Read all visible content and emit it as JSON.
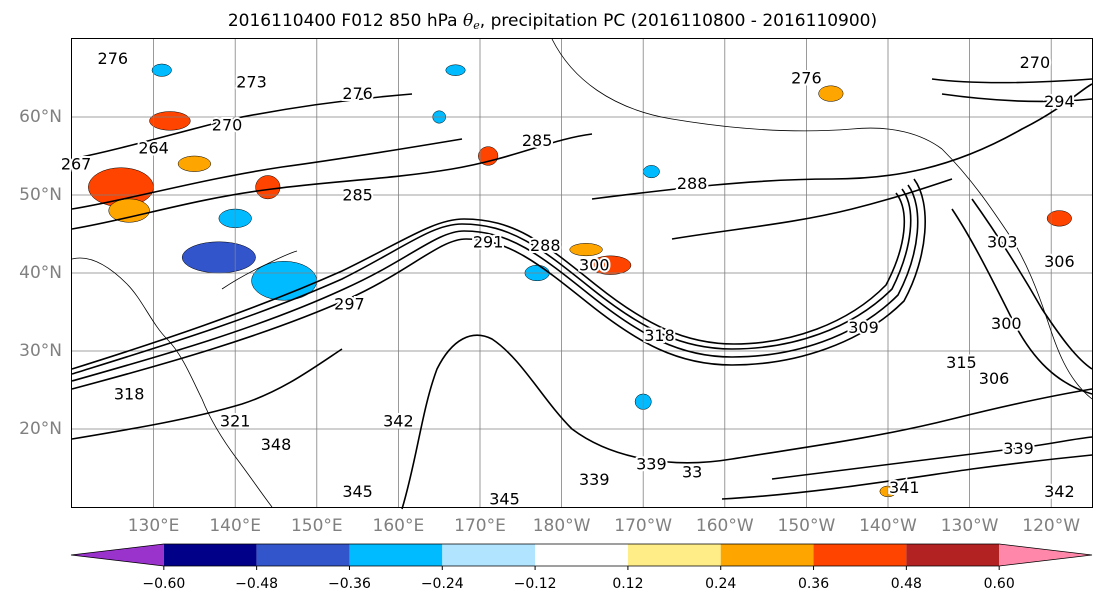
{
  "title": {
    "prefix": "2016110400 F012 850 hPa ",
    "theta": "θ",
    "theta_sub": "e",
    "suffix": ", precipitation PC (2016110800 - 2016110900)"
  },
  "map": {
    "lon_range": [
      120,
      245
    ],
    "lat_range": [
      10,
      70
    ],
    "lat_labels": [
      {
        "value": 60,
        "label": "60°N"
      },
      {
        "value": 50,
        "label": "50°N"
      },
      {
        "value": 40,
        "label": "40°N"
      },
      {
        "value": 30,
        "label": "30°N"
      },
      {
        "value": 20,
        "label": "20°N"
      }
    ],
    "lon_labels": [
      {
        "value": 130,
        "label": "130°E"
      },
      {
        "value": 140,
        "label": "140°E"
      },
      {
        "value": 150,
        "label": "150°E"
      },
      {
        "value": 160,
        "label": "160°E"
      },
      {
        "value": 170,
        "label": "170°E"
      },
      {
        "value": 180,
        "label": "180°W"
      },
      {
        "value": 190,
        "label": "170°W"
      },
      {
        "value": 200,
        "label": "160°W"
      },
      {
        "value": 210,
        "label": "150°W"
      },
      {
        "value": 220,
        "label": "140°W"
      },
      {
        "value": 230,
        "label": "130°W"
      },
      {
        "value": 240,
        "label": "120°W"
      }
    ],
    "gridline_color": "#808080",
    "contour_labels": [
      {
        "text": "276",
        "lon": 125,
        "lat": 67.5
      },
      {
        "text": "273",
        "lon": 142,
        "lat": 64.5
      },
      {
        "text": "276",
        "lon": 155,
        "lat": 63
      },
      {
        "text": "270",
        "lon": 139,
        "lat": 59
      },
      {
        "text": "264",
        "lon": 130,
        "lat": 56
      },
      {
        "text": "267",
        "lon": 120.5,
        "lat": 54
      },
      {
        "text": "285",
        "lon": 177,
        "lat": 57
      },
      {
        "text": "285",
        "lon": 155,
        "lat": 50
      },
      {
        "text": "288",
        "lon": 196,
        "lat": 51.5
      },
      {
        "text": "291",
        "lon": 171,
        "lat": 44
      },
      {
        "text": "288",
        "lon": 178,
        "lat": 43.5
      },
      {
        "text": "300",
        "lon": 184,
        "lat": 41
      },
      {
        "text": "297",
        "lon": 154,
        "lat": 36
      },
      {
        "text": "318",
        "lon": 192,
        "lat": 32
      },
      {
        "text": "309",
        "lon": 217,
        "lat": 33
      },
      {
        "text": "300",
        "lon": 234.5,
        "lat": 33.5
      },
      {
        "text": "303",
        "lon": 234,
        "lat": 44
      },
      {
        "text": "306",
        "lon": 241,
        "lat": 41.5
      },
      {
        "text": "315",
        "lon": 229,
        "lat": 28.5
      },
      {
        "text": "306",
        "lon": 233,
        "lat": 26.5
      },
      {
        "text": "318",
        "lon": 127,
        "lat": 24.5
      },
      {
        "text": "321",
        "lon": 140,
        "lat": 21
      },
      {
        "text": "348",
        "lon": 145,
        "lat": 18
      },
      {
        "text": "342",
        "lon": 160,
        "lat": 21
      },
      {
        "text": "345",
        "lon": 155,
        "lat": 12
      },
      {
        "text": "345",
        "lon": 173,
        "lat": 11
      },
      {
        "text": "339",
        "lon": 184,
        "lat": 13.5
      },
      {
        "text": "339",
        "lon": 191,
        "lat": 15.5
      },
      {
        "text": "33",
        "lon": 196,
        "lat": 14.5
      },
      {
        "text": "341",
        "lon": 222,
        "lat": 12.5
      },
      {
        "text": "339",
        "lon": 236,
        "lat": 17.5
      },
      {
        "text": "342",
        "lon": 241,
        "lat": 12
      },
      {
        "text": "270",
        "lon": 238,
        "lat": 67
      },
      {
        "text": "276",
        "lon": 210,
        "lat": 65
      },
      {
        "text": "294",
        "lon": 241,
        "lat": 62
      }
    ]
  },
  "colorbar": {
    "ticks": [
      {
        "value": -0.6,
        "label": "−0.60"
      },
      {
        "value": -0.48,
        "label": "−0.48"
      },
      {
        "value": -0.36,
        "label": "−0.36"
      },
      {
        "value": -0.24,
        "label": "−0.24"
      },
      {
        "value": -0.12,
        "label": "−0.12"
      },
      {
        "value": 0.12,
        "label": "0.12"
      },
      {
        "value": 0.24,
        "label": "0.24"
      },
      {
        "value": 0.36,
        "label": "0.36"
      },
      {
        "value": 0.48,
        "label": "0.48"
      },
      {
        "value": 0.6,
        "label": "0.60"
      }
    ],
    "colors": [
      "#9933cc",
      "#000088",
      "#3355cc",
      "#00bbff",
      "#b0e4ff",
      "#ffffff",
      "#ffee88",
      "#ffa500",
      "#ff4400",
      "#b22222",
      "#ff88aa"
    ]
  },
  "shaded_regions": [
    {
      "color": "#ff4400",
      "lon": 126,
      "lat": 51,
      "rx": 4,
      "ry": 2.5
    },
    {
      "color": "#ff4400",
      "lon": 132,
      "lat": 59.5,
      "rx": 2.5,
      "ry": 1.2
    },
    {
      "color": "#ff4400",
      "lon": 144,
      "lat": 51,
      "rx": 1.5,
      "ry": 1.5
    },
    {
      "color": "#ffa500",
      "lon": 135,
      "lat": 54,
      "rx": 2,
      "ry": 1
    },
    {
      "color": "#ffa500",
      "lon": 127,
      "lat": 48,
      "rx": 2.5,
      "ry": 1.5
    },
    {
      "color": "#3355cc",
      "lon": 138,
      "lat": 42,
      "rx": 4.5,
      "ry": 2
    },
    {
      "color": "#00bbff",
      "lon": 146,
      "lat": 39,
      "rx": 4,
      "ry": 2.5
    },
    {
      "color": "#00bbff",
      "lon": 140,
      "lat": 47,
      "rx": 2,
      "ry": 1.2
    },
    {
      "color": "#00bbff",
      "lon": 131,
      "lat": 66,
      "rx": 1.2,
      "ry": 0.8
    },
    {
      "color": "#ff4400",
      "lon": 186,
      "lat": 41,
      "rx": 2.5,
      "ry": 1.2
    },
    {
      "color": "#ffa500",
      "lon": 183,
      "lat": 43,
      "rx": 2,
      "ry": 0.8
    },
    {
      "color": "#00bbff",
      "lon": 177,
      "lat": 40,
      "rx": 1.5,
      "ry": 1
    },
    {
      "color": "#00bbff",
      "lon": 191,
      "lat": 53,
      "rx": 1,
      "ry": 0.8
    },
    {
      "color": "#00bbff",
      "lon": 190,
      "lat": 23.5,
      "rx": 1,
      "ry": 1
    },
    {
      "color": "#ff4400",
      "lon": 241,
      "lat": 47,
      "rx": 1.5,
      "ry": 1
    },
    {
      "color": "#ffa500",
      "lon": 213,
      "lat": 63,
      "rx": 1.5,
      "ry": 1
    },
    {
      "color": "#ff4400",
      "lon": 171,
      "lat": 55,
      "rx": 1.2,
      "ry": 1.2
    },
    {
      "color": "#00bbff",
      "lon": 165,
      "lat": 60,
      "rx": 0.8,
      "ry": 0.8
    },
    {
      "color": "#ffa500",
      "lon": 220,
      "lat": 12,
      "rx": 1,
      "ry": 0.7
    },
    {
      "color": "#00bbff",
      "lon": 167,
      "lat": 66,
      "rx": 1.2,
      "ry": 0.7
    }
  ]
}
